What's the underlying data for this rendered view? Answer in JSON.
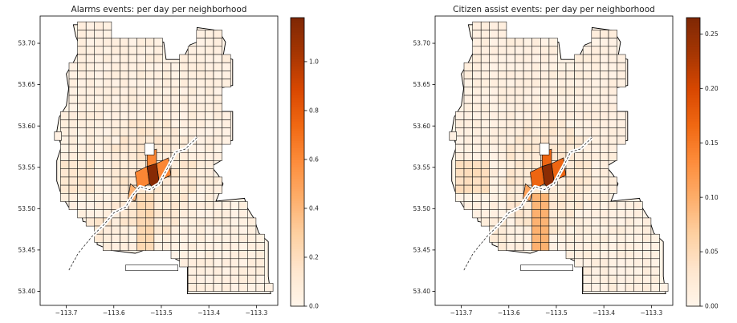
{
  "figure": {
    "panels": [
      {
        "title": "Alarms events: per day per neighborhood",
        "colorbar": {
          "min": 0.0,
          "max": 1.18,
          "ticks": [
            "0.0",
            "0.2",
            "0.4",
            "0.6",
            "0.8",
            "1.0"
          ],
          "tick_values": [
            0.0,
            0.2,
            0.4,
            0.6,
            0.8,
            1.0
          ]
        },
        "highlights": {
          "core": 1.15,
          "ring": 0.62,
          "near": 0.42,
          "south_corridor": 0.22,
          "mid": 0.12
        }
      },
      {
        "title": "Citizen assist events: per day per neighborhood",
        "colorbar": {
          "min": 0.0,
          "max": 0.265,
          "ticks": [
            "0.00",
            "0.05",
            "0.10",
            "0.15",
            "0.20",
            "0.25"
          ],
          "tick_values": [
            0.0,
            0.05,
            0.1,
            0.15,
            0.2,
            0.25
          ]
        },
        "highlights": {
          "core": 0.255,
          "ring": 0.17,
          "near": 0.11,
          "south_corridor": 0.09,
          "mid": 0.04
        }
      }
    ],
    "x_ticks": [
      "−113.7",
      "−113.6",
      "−113.5",
      "−113.4",
      "−113.3"
    ],
    "x_tick_values": [
      -113.7,
      -113.6,
      -113.5,
      -113.4,
      -113.3
    ],
    "y_ticks": [
      "53.40",
      "53.45",
      "53.50",
      "53.55",
      "53.60",
      "53.65",
      "53.70"
    ],
    "y_tick_values": [
      53.4,
      53.45,
      53.5,
      53.55,
      53.6,
      53.65,
      53.7
    ],
    "xlim": [
      -113.755,
      -113.255
    ],
    "ylim": [
      53.383,
      53.733
    ],
    "colormap": [
      "#fff5eb",
      "#fee6ce",
      "#fdd0a2",
      "#fdae6b",
      "#fd8d3c",
      "#f16913",
      "#d94801",
      "#a63603",
      "#7f2704"
    ],
    "colormap_name": "OrRd"
  },
  "chart_data": [
    {
      "type": "heatmap",
      "title": "Alarms events: per day per neighborhood",
      "xlabel": "",
      "ylabel": "",
      "xlim": [
        -113.755,
        -113.255
      ],
      "ylim": [
        53.383,
        53.733
      ],
      "colorbar_range": [
        0.0,
        1.18
      ],
      "values": {
        "downtown_core": 1.15,
        "downtown_ring": 0.62,
        "central_near": 0.42,
        "south_corridor": 0.22,
        "typical_neighborhood": 0.05
      }
    },
    {
      "type": "heatmap",
      "title": "Citizen assist events: per day per neighborhood",
      "xlabel": "",
      "ylabel": "",
      "xlim": [
        -113.755,
        -113.255
      ],
      "ylim": [
        53.383,
        53.733
      ],
      "colorbar_range": [
        0.0,
        0.265
      ],
      "values": {
        "downtown_core": 0.255,
        "downtown_ring": 0.17,
        "central_near": 0.11,
        "south_corridor": 0.09,
        "typical_neighborhood": 0.02
      }
    }
  ]
}
